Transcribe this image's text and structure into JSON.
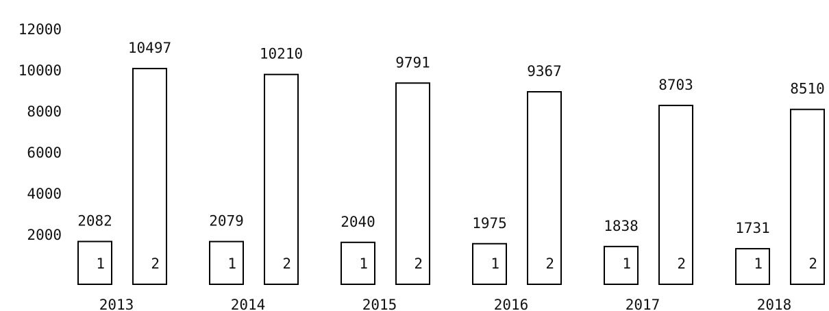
{
  "chart_data": {
    "type": "bar",
    "title": "",
    "xlabel": "",
    "ylabel": "",
    "ylim": [
      0,
      12000
    ],
    "yticks": [
      2000,
      4000,
      6000,
      8000,
      10000,
      12000
    ],
    "ytick_labels": [
      "2000",
      "4000",
      "6000",
      "8000",
      "10000",
      "12000"
    ],
    "categories": [
      "2013",
      "2014",
      "2015",
      "2016",
      "2017",
      "2018"
    ],
    "grid": false,
    "legend": "none",
    "series": [
      {
        "bar_label": "1",
        "values": [
          2082,
          2079,
          2040,
          1975,
          1838,
          1731
        ],
        "value_labels": [
          "2082",
          "2079",
          "2040",
          "1975",
          "1838",
          "1731"
        ]
      },
      {
        "bar_label": "2",
        "values": [
          10497,
          10210,
          9791,
          9367,
          8703,
          8510
        ],
        "value_labels": [
          "10497",
          "10210",
          "9791",
          "9367",
          "8703",
          "8510"
        ]
      }
    ],
    "colors": {
      "bar_fill": "#ffffff",
      "bar_stroke": "#000000",
      "text": "#111111"
    }
  }
}
